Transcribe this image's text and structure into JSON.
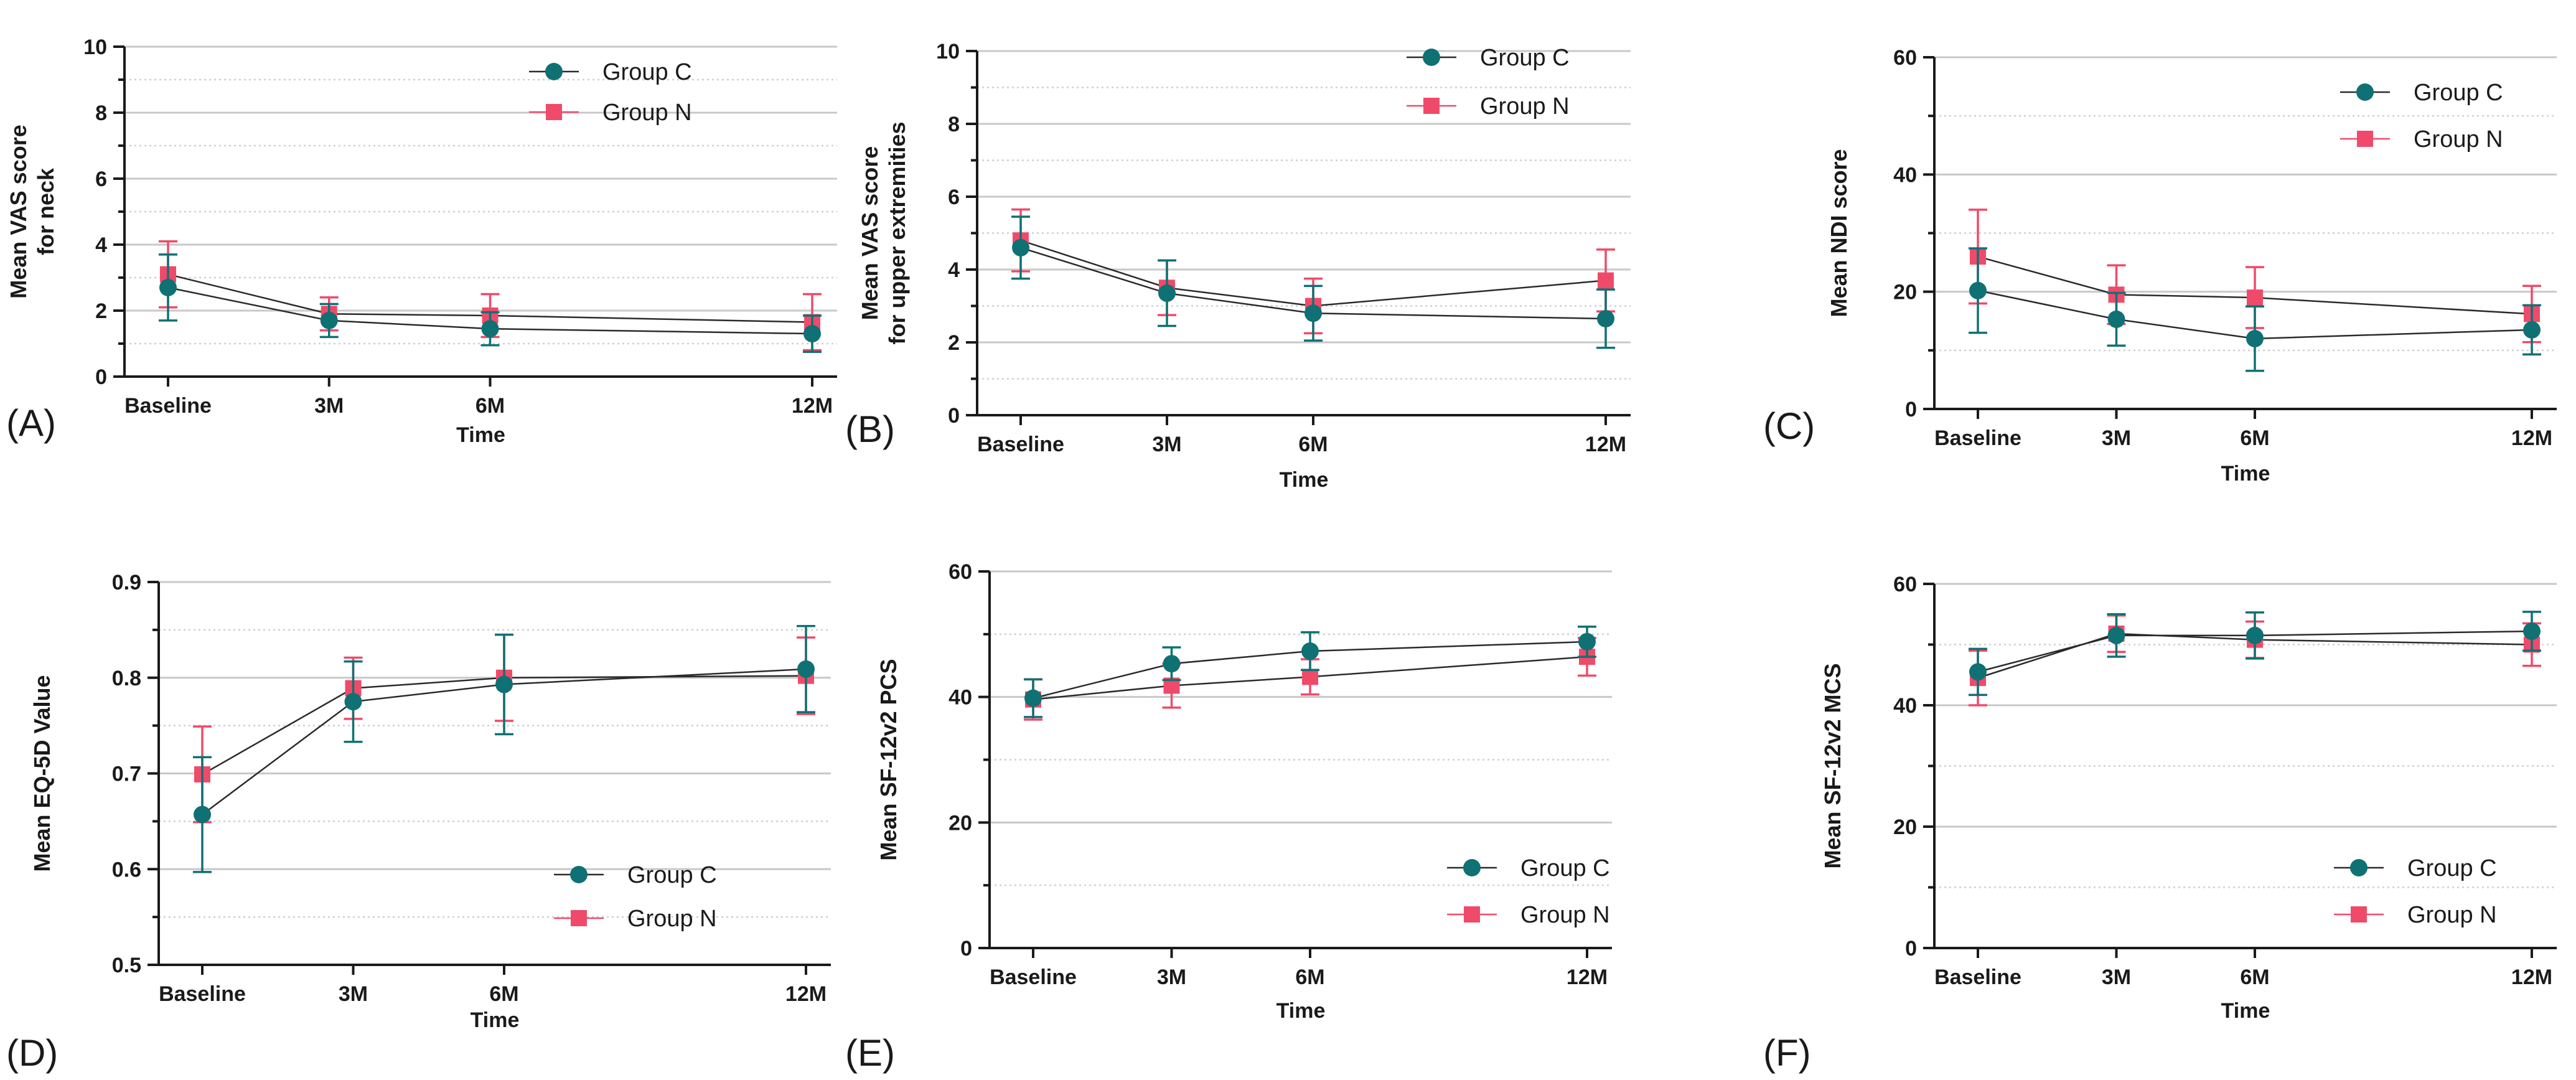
{
  "colors": {
    "group_c": "#0f7173",
    "group_n": "#f04a6a",
    "axis": "#1a1a1a",
    "grid_major": "#c8c8c8",
    "grid_minor": "#cfcfcf"
  },
  "chart_data": [
    {
      "id": "A",
      "panel_label": "(A)",
      "type": "line",
      "ylabel": [
        "Mean VAS score",
        "for neck"
      ],
      "xlabel": "Time",
      "x": [
        0,
        3,
        6,
        12
      ],
      "categories": [
        "Baseline",
        "3M",
        "6M",
        "12M"
      ],
      "ylim": [
        0,
        10
      ],
      "yticks": [
        0,
        2,
        4,
        6,
        8,
        10
      ],
      "grid_step": 1,
      "legend_position": "top-right",
      "series": [
        {
          "name": "Group C",
          "values": [
            2.7,
            1.7,
            1.45,
            1.3
          ],
          "err": [
            1.0,
            0.5,
            0.5,
            0.55
          ]
        },
        {
          "name": "Group  N",
          "values": [
            3.1,
            1.9,
            1.85,
            1.65
          ],
          "err": [
            1.0,
            0.5,
            0.65,
            0.85
          ]
        }
      ]
    },
    {
      "id": "B",
      "panel_label": "(B)",
      "type": "line",
      "ylabel": [
        "Mean VAS score",
        "for upper extremities"
      ],
      "xlabel": "Time",
      "x": [
        0,
        3,
        6,
        12
      ],
      "categories": [
        "Baseline",
        "3M",
        "6M",
        "12M"
      ],
      "ylim": [
        0,
        10
      ],
      "yticks": [
        0,
        2,
        4,
        6,
        8,
        10
      ],
      "grid_step": 1,
      "legend_position": "top-right",
      "series": [
        {
          "name": "Group C",
          "values": [
            4.6,
            3.35,
            2.8,
            2.65
          ],
          "err": [
            0.85,
            0.9,
            0.75,
            0.8
          ]
        },
        {
          "name": "Group  N",
          "values": [
            4.8,
            3.5,
            3.0,
            3.7
          ],
          "err": [
            0.85,
            0.75,
            0.75,
            0.85
          ]
        }
      ]
    },
    {
      "id": "C",
      "panel_label": "(C)",
      "type": "line",
      "ylabel": [
        "Mean NDI score"
      ],
      "xlabel": "Time",
      "x": [
        0,
        3,
        6,
        12
      ],
      "categories": [
        "Baseline",
        "3M",
        "6M",
        "12M"
      ],
      "ylim": [
        0,
        60
      ],
      "yticks": [
        0,
        20,
        40,
        60
      ],
      "grid_step": 10,
      "legend_position": "top-right",
      "series": [
        {
          "name": "Group C",
          "values": [
            20.2,
            15.3,
            12.0,
            13.5
          ],
          "err": [
            7.2,
            4.5,
            5.5,
            4.2
          ]
        },
        {
          "name": "Group N",
          "values": [
            26.0,
            19.5,
            19.0,
            16.2
          ],
          "err": [
            8.0,
            5.0,
            5.2,
            4.8
          ]
        }
      ]
    },
    {
      "id": "D",
      "panel_label": "(D)",
      "type": "line",
      "ylabel": [
        "Mean EQ-5D Value"
      ],
      "xlabel": "Time",
      "x": [
        0,
        3,
        6,
        12
      ],
      "categories": [
        "Baseline",
        "3M",
        "6M",
        "12M"
      ],
      "ylim": [
        0.5,
        0.9
      ],
      "yticks": [
        0.5,
        0.6,
        0.7,
        0.8,
        0.9
      ],
      "grid_step": 0.05,
      "legend_position": "bottom-right",
      "series": [
        {
          "name": "Group C",
          "values": [
            0.657,
            0.775,
            0.793,
            0.809
          ],
          "err": [
            0.06,
            0.042,
            0.052,
            0.045
          ]
        },
        {
          "name": "Group N",
          "values": [
            0.699,
            0.789,
            0.8,
            0.802
          ],
          "err": [
            0.05,
            0.032,
            0.045,
            0.04
          ]
        }
      ]
    },
    {
      "id": "E",
      "panel_label": "(E)",
      "type": "line",
      "ylabel": [
        "Mean SF-12v2  PCS"
      ],
      "xlabel": "Time",
      "x": [
        0,
        3,
        6,
        12
      ],
      "categories": [
        "Baseline",
        "3M",
        "6M",
        "12M"
      ],
      "ylim": [
        0,
        60
      ],
      "yticks": [
        0,
        20,
        40,
        60
      ],
      "grid_step": 10,
      "legend_position": "bottom-right",
      "series": [
        {
          "name": "Group C",
          "values": [
            39.8,
            45.3,
            47.3,
            48.8
          ],
          "err": [
            3.0,
            2.6,
            3.0,
            2.4
          ]
        },
        {
          "name": "Group N",
          "values": [
            39.6,
            41.8,
            43.2,
            46.4
          ],
          "err": [
            3.2,
            3.5,
            2.8,
            3.0
          ]
        }
      ]
    },
    {
      "id": "F",
      "panel_label": "(F)",
      "type": "line",
      "ylabel": [
        "Mean SF-12v2  MCS"
      ],
      "xlabel": "Time",
      "x": [
        0,
        3,
        6,
        12
      ],
      "categories": [
        "Baseline",
        "3M",
        "6M",
        "12M"
      ],
      "ylim": [
        0,
        60
      ],
      "yticks": [
        0,
        20,
        40,
        60
      ],
      "grid_step": 10,
      "legend_position": "bottom-right",
      "series": [
        {
          "name": "Group C",
          "values": [
            45.5,
            51.5,
            51.5,
            52.2
          ],
          "err": [
            3.8,
            3.5,
            3.8,
            3.2
          ]
        },
        {
          "name": "Group N",
          "values": [
            44.5,
            51.8,
            50.8,
            50.0
          ],
          "err": [
            4.5,
            3.0,
            3.0,
            3.5
          ]
        }
      ]
    }
  ]
}
